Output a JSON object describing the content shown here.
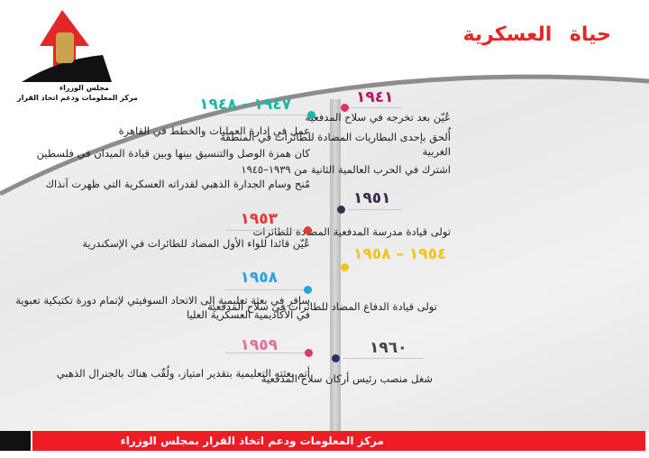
{
  "header": {
    "title": "حياة العسكرية",
    "logo": {
      "line1": "مجلس الوزراء",
      "line2": "مركز المعلومات ودعم اتخاذ القرار"
    }
  },
  "timeline": {
    "right": [
      {
        "year": "١٩٤١",
        "color": "#b8175f",
        "dot": "#e0306a",
        "items": [
          "عُيّن بعد تخرجه في سلاح المدفعية",
          "أُلحق بإحدى البطاريات المضادة للطائرات في المنطقة الغربية",
          "اشترك في الحرب العالمية الثانية من ١٩٣٩–١٩٤٥"
        ]
      },
      {
        "year": "١٩٥١",
        "color": "#3d2c4e",
        "dot": "#3d2c4e",
        "items": [
          "تولى قيادة مدرسة المدفعية المضادة للطائرات"
        ]
      },
      {
        "year": "١٩٥٤ – ١٩٥٨",
        "color": "#f0c419",
        "dot": "#f0c419",
        "items": [
          "تولى قيادة الدفاع المضاد للطائرات في سلاح المدفعية"
        ]
      },
      {
        "year": "١٩٦٠",
        "color": "#444444",
        "dot": "#2d2f66",
        "items": [
          "شغل منصب رئيس أركان سلاح المدفعية"
        ]
      }
    ],
    "left": [
      {
        "year": "١٩٤٧ - ١٩٤٨",
        "color": "#1fb5a5",
        "dot": "#1fb5a5",
        "items": [
          "عمل في إدارة العمليات والخطط في القاهرة",
          "كان همزة الوصل والتنسيق بينها وبين قيادة الميدان في فلسطين",
          "مُنح وسام الجدارة الذهبي لقدراته العسكرية التي ظهرت آنذاك"
        ]
      },
      {
        "year": "١٩٥٣",
        "color": "#e53935",
        "dot": "#e53935",
        "items": [
          "عُيّن قائدا للواء الأول المضاد للطائرات في الإسكندرية"
        ]
      },
      {
        "year": "١٩٥٨",
        "color": "#2aa3dc",
        "dot": "#2aa3dc",
        "items": [
          "سافر في بعثة تعليمية إلى الاتحاد السوفيتي لإتمام دورة تكتيكية تعبوية في الأكاديمية العسكرية العليا"
        ]
      },
      {
        "year": "١٩٥٩",
        "color": "#e0709a",
        "dot": "#d83a6e",
        "items": [
          "أتم بعثته التعليمية بتقدير امتياز، ولُقّب هناك بالجنرال الذهبي"
        ]
      }
    ]
  },
  "footer": {
    "text": "مركز المعلومات ودعم اتخاذ القرار بمجلس الوزراء"
  }
}
